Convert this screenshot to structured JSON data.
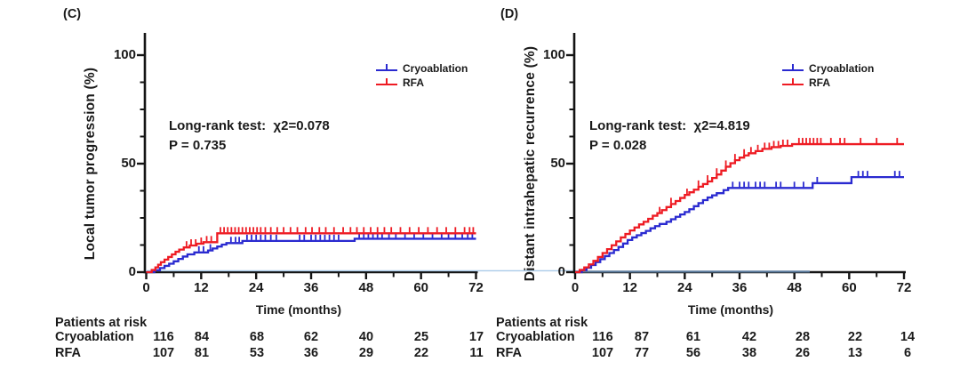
{
  "figure": {
    "colors": {
      "cryoablation": "#2a2ad0",
      "rfa": "#ee1b23",
      "axis": "#141414",
      "baseline_light": "#aacbe9",
      "baseline_dark": "#5b7b9d"
    },
    "legend": [
      {
        "key": "cryoablation",
        "label": "Cryoablation"
      },
      {
        "key": "rfa",
        "label": "RFA"
      }
    ]
  },
  "chart_data": [
    {
      "type": "line",
      "panel_tag": "(C)",
      "ylabel": "Local tumor progression (%)",
      "xlabel": "Time (months)",
      "annotation_line1": "Long-rank test:  χ2=0.078",
      "annotation_line2": "P = 0.735",
      "xlim": [
        0,
        72
      ],
      "ylim": [
        0,
        100
      ],
      "xticks": [
        0,
        12,
        24,
        36,
        48,
        60,
        72
      ],
      "yticks": [
        0,
        50,
        100
      ],
      "x_minor_step": 6,
      "y_minor_step": 12.5,
      "legend_position": "top-right",
      "series": [
        {
          "name": "Cryoablation",
          "color_key": "cryoablation",
          "steps": [
            [
              0,
              0
            ],
            [
              1.8,
              0.9
            ],
            [
              3,
              1.9
            ],
            [
              4,
              2.9
            ],
            [
              5,
              3.9
            ],
            [
              6,
              5
            ],
            [
              7,
              6.1
            ],
            [
              8,
              7.2
            ],
            [
              9,
              8.2
            ],
            [
              10.5,
              9.1
            ],
            [
              13.5,
              10
            ],
            [
              14.5,
              10.9
            ],
            [
              15.5,
              11.8
            ],
            [
              16.5,
              12.7
            ],
            [
              17.5,
              13.4
            ],
            [
              21,
              14.4
            ],
            [
              45.5,
              15.4
            ]
          ],
          "end": 72,
          "censors": [
            11.5,
            12.5,
            14,
            18.5,
            19.5,
            20.3,
            22,
            23,
            24,
            25,
            26,
            27.2,
            28.4,
            33.5,
            34.5,
            36,
            37,
            38,
            39,
            40,
            41,
            42,
            46.5,
            47.5,
            48.5,
            49.5,
            50.5,
            51.5,
            53,
            54.5,
            56.5,
            58.5,
            60.5,
            62.5,
            64.5,
            66,
            67.5,
            69,
            70.2,
            71.2
          ]
        },
        {
          "name": "RFA",
          "color_key": "rfa",
          "steps": [
            [
              0,
              0
            ],
            [
              1.2,
              1
            ],
            [
              2,
              2.2
            ],
            [
              2.6,
              3.4
            ],
            [
              3.2,
              4.6
            ],
            [
              4,
              5.8
            ],
            [
              4.8,
              7
            ],
            [
              5.6,
              8.2
            ],
            [
              6.4,
              9.4
            ],
            [
              7.2,
              10.4
            ],
            [
              8.2,
              11.4
            ],
            [
              9.5,
              12.3
            ],
            [
              11,
              13.1
            ],
            [
              12.5,
              13.8
            ],
            [
              15.5,
              17.9
            ]
          ],
          "end": 72,
          "censors": [
            8.8,
            9.8,
            10.8,
            12,
            13.2,
            14.2,
            16.2,
            17,
            17.8,
            18.6,
            19.4,
            20.2,
            21,
            21.8,
            22.6,
            23.4,
            24.2,
            25,
            26,
            27.2,
            28.6,
            30,
            31.5,
            33,
            34.8,
            36.2,
            37.8,
            39.2,
            41,
            43,
            44.6,
            46,
            47.5,
            49,
            50.5,
            52,
            53.5,
            55.5,
            57.5,
            59.5,
            61.5,
            63.5,
            65.5,
            67.5,
            69.5,
            70.6,
            71.4
          ]
        }
      ],
      "at_risk": {
        "title": "Patients at risk",
        "rows": [
          {
            "label": "Cryoablation",
            "values": [
              "116",
              "84",
              "68",
              "62",
              "40",
              "25",
              "17"
            ]
          },
          {
            "label": "RFA",
            "values": [
              "107",
              "81",
              "53",
              "36",
              "29",
              "22",
              "11"
            ]
          }
        ]
      }
    },
    {
      "type": "line",
      "panel_tag": "(D)",
      "ylabel": "Distant intrahepatic recurrence (%)",
      "xlabel": "Time (months)",
      "annotation_line1": "Long-rank test:  χ2=4.819",
      "annotation_line2": "P = 0.028",
      "xlim": [
        0,
        72
      ],
      "ylim": [
        0,
        100
      ],
      "xticks": [
        0,
        12,
        24,
        36,
        48,
        60,
        72
      ],
      "yticks": [
        0,
        50,
        100
      ],
      "x_minor_step": 6,
      "y_minor_step": 12.5,
      "legend_position": "top-right",
      "series": [
        {
          "name": "Cryoablation",
          "color_key": "cryoablation",
          "steps": [
            [
              0,
              0
            ],
            [
              1.5,
              1
            ],
            [
              2.5,
              2
            ],
            [
              3.5,
              3.3
            ],
            [
              4.5,
              4.6
            ],
            [
              5.5,
              6
            ],
            [
              6.5,
              7.4
            ],
            [
              7.5,
              8.8
            ],
            [
              8.5,
              10.2
            ],
            [
              9.5,
              11.6
            ],
            [
              10.5,
              13.2
            ],
            [
              11.5,
              14.8
            ],
            [
              12.5,
              16
            ],
            [
              13.5,
              17
            ],
            [
              14.5,
              18
            ],
            [
              15.5,
              19
            ],
            [
              16.5,
              20.2
            ],
            [
              17.5,
              21.2
            ],
            [
              18.5,
              22.2
            ],
            [
              20,
              23.2
            ],
            [
              21,
              24.4
            ],
            [
              22,
              25.5
            ],
            [
              23,
              26.6
            ],
            [
              24,
              27.7
            ],
            [
              25,
              29
            ],
            [
              26,
              30.4
            ],
            [
              27,
              31.8
            ],
            [
              28,
              33.2
            ],
            [
              29,
              34.4
            ],
            [
              30,
              35.4
            ],
            [
              31,
              36.4
            ],
            [
              32.5,
              37.8
            ],
            [
              33.5,
              38.8
            ],
            [
              52,
              41
            ],
            [
              60.5,
              43.8
            ]
          ],
          "end": 72,
          "censors": [
            34.5,
            36,
            37,
            38,
            39.5,
            40.5,
            41.5,
            44,
            45,
            48,
            50,
            53,
            62,
            63,
            64,
            70,
            71
          ]
        },
        {
          "name": "RFA",
          "color_key": "rfa",
          "steps": [
            [
              0,
              0
            ],
            [
              1,
              1
            ],
            [
              2,
              2.2
            ],
            [
              3,
              3.6
            ],
            [
              4,
              5.2
            ],
            [
              5,
              7
            ],
            [
              6,
              8.8
            ],
            [
              7,
              10.6
            ],
            [
              8,
              12.4
            ],
            [
              9,
              14.2
            ],
            [
              10,
              16
            ],
            [
              11,
              17.6
            ],
            [
              12,
              19.2
            ],
            [
              13,
              20.6
            ],
            [
              14,
              22
            ],
            [
              15,
              23.2
            ],
            [
              16,
              24.6
            ],
            [
              17,
              26
            ],
            [
              18,
              27.2
            ],
            [
              19,
              28.6
            ],
            [
              20,
              30
            ],
            [
              21,
              31.4
            ],
            [
              22,
              32.8
            ],
            [
              23,
              34.2
            ],
            [
              24,
              35.6
            ],
            [
              25,
              36.8
            ],
            [
              26,
              38
            ],
            [
              27,
              39.4
            ],
            [
              28,
              40.6
            ],
            [
              29,
              41.8
            ],
            [
              30,
              43.4
            ],
            [
              31,
              45
            ],
            [
              32,
              46.8
            ],
            [
              33,
              48.6
            ],
            [
              34,
              50.2
            ],
            [
              35,
              51.6
            ],
            [
              36,
              52.8
            ],
            [
              37,
              53.8
            ],
            [
              38,
              54.8
            ],
            [
              39.5,
              55.8
            ],
            [
              41,
              56.8
            ],
            [
              43,
              57.6
            ],
            [
              45,
              58.2
            ],
            [
              47.5,
              59
            ]
          ],
          "end": 72,
          "censors": [
            18.5,
            21,
            24.5,
            27,
            29,
            31,
            33,
            35,
            37,
            38.5,
            40,
            41.5,
            42.5,
            43.5,
            44.5,
            45.5,
            46.5,
            49,
            49.8,
            50.6,
            51.4,
            52.2,
            53,
            53.8,
            56,
            58,
            59,
            62.5,
            66,
            70.5
          ]
        }
      ],
      "at_risk": {
        "title": "Patients at risk",
        "rows": [
          {
            "label": "Cryoablation",
            "values": [
              "116",
              "87",
              "61",
              "42",
              "28",
              "22",
              "14"
            ]
          },
          {
            "label": "RFA",
            "values": [
              "107",
              "77",
              "56",
              "38",
              "26",
              "13",
              "6"
            ]
          }
        ]
      }
    }
  ]
}
